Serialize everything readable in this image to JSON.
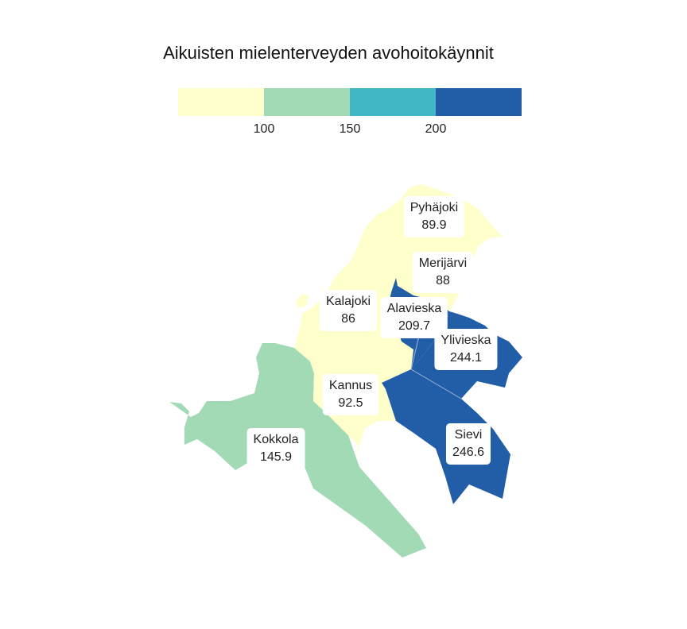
{
  "title": "Aikuisten mielenterveyden avohoitokäynnit",
  "legend": {
    "colors": [
      "#ffffcc",
      "#a1dab4",
      "#41b6c4",
      "#225ea8"
    ],
    "ticks": [
      "100",
      "150",
      "200"
    ]
  },
  "regions": [
    {
      "name": "Pyhäjoki",
      "value": "89.9",
      "color": "#ffffcc"
    },
    {
      "name": "Merijärvi",
      "value": "88",
      "color": "#ffffcc"
    },
    {
      "name": "Kalajoki",
      "value": "86",
      "color": "#ffffcc"
    },
    {
      "name": "Alavieska",
      "value": "209.7",
      "color": "#225ea8"
    },
    {
      "name": "Ylivieska",
      "value": "244.1",
      "color": "#225ea8"
    },
    {
      "name": "Kannus",
      "value": "92.5",
      "color": "#ffffcc"
    },
    {
      "name": "Sievi",
      "value": "246.6",
      "color": "#225ea8"
    },
    {
      "name": "Kokkola",
      "value": "145.9",
      "color": "#a1dab4"
    }
  ]
}
